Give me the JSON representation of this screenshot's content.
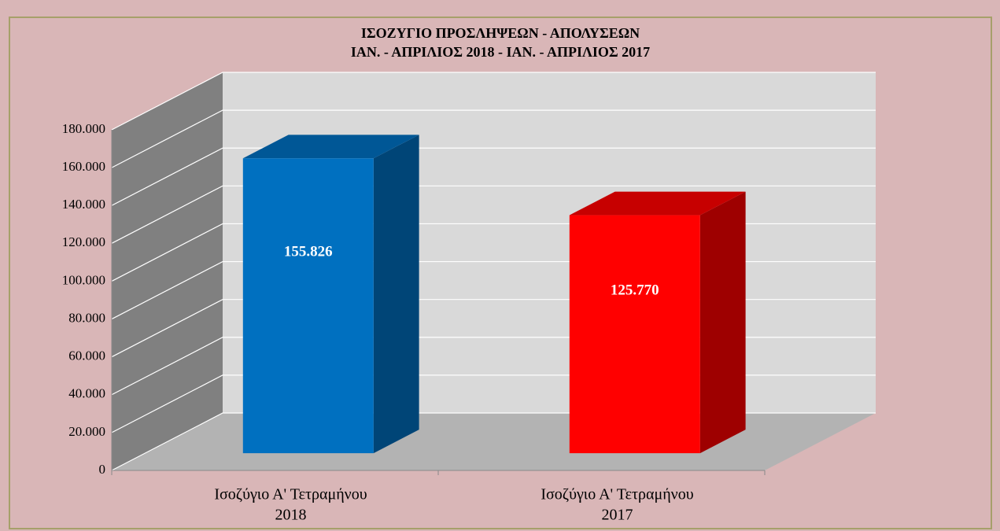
{
  "chart_data": {
    "type": "bar3d",
    "title": "ΙΣΟΖΥΓΙΟ  ΠΡΟΣΛΗΨΕΩΝ  -  ΑΠΟΛΥΣΕΩΝ",
    "subtitle": "ΙΑΝ. - ΑΠΡΙΛΙΟΣ 2018   -   ΙΑΝ. - ΑΠΡΙΛΙΟΣ 2017",
    "categories": [
      [
        "Ισοζύγιο Α' Τετραμήνου",
        "2018"
      ],
      [
        "Ισοζύγιο Α' Τετραμήνου",
        "2017"
      ]
    ],
    "values": [
      155826,
      125770
    ],
    "value_labels": [
      "155.826",
      "125.770"
    ],
    "colors": [
      "#0070c0",
      "#ff0000"
    ],
    "ylim": [
      0,
      180000
    ],
    "yticks": [
      0,
      {
        "value": 20000,
        "label": "20.000"
      },
      {
        "value": 40000,
        "label": "40.000"
      },
      {
        "value": 60000,
        "label": "60.000"
      },
      {
        "value": 80000,
        "label": "80.000"
      },
      {
        "value": 100000,
        "label": "100.000"
      },
      {
        "value": 120000,
        "label": "120.000"
      },
      {
        "value": 140000,
        "label": "140.000"
      },
      {
        "value": 160000,
        "label": "160.000"
      },
      {
        "value": 180000,
        "label": "180.000"
      }
    ],
    "grid": true
  }
}
